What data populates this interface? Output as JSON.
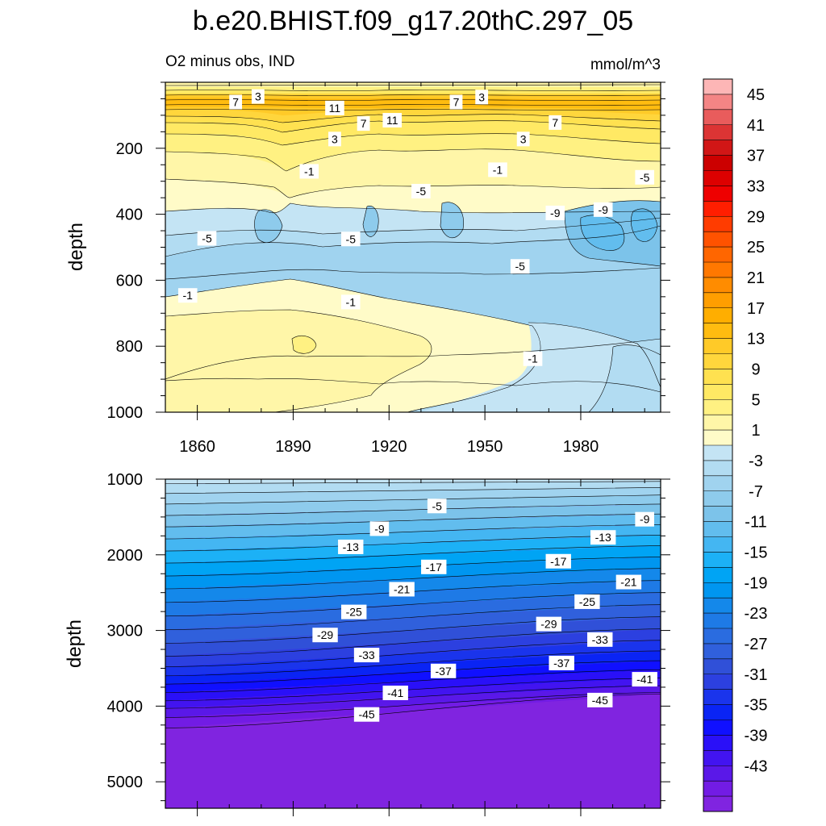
{
  "title": "b.e20.BHIST.f09_g17.20thC.297_05",
  "subtitle_left": "O2 minus obs, IND",
  "subtitle_right": "mmol/m^3",
  "chart_data": [
    {
      "type": "contour",
      "panel": "upper",
      "xlabel": "",
      "ylabel": "depth",
      "xlim": [
        1850,
        2005
      ],
      "ylim": [
        0,
        1000
      ],
      "y_inverted": true,
      "x_ticks": [
        1860,
        1890,
        1920,
        1950,
        1980
      ],
      "y_ticks": [
        200,
        400,
        600,
        800,
        1000
      ],
      "contour_labels": [
        {
          "text": "7",
          "x": 1872,
          "y": 60
        },
        {
          "text": "3",
          "x": 1879,
          "y": 43
        },
        {
          "text": "11",
          "x": 1903,
          "y": 78
        },
        {
          "text": "7",
          "x": 1912,
          "y": 125
        },
        {
          "text": "11",
          "x": 1921,
          "y": 115
        },
        {
          "text": "3",
          "x": 1903,
          "y": 172
        },
        {
          "text": "7",
          "x": 1941,
          "y": 60
        },
        {
          "text": "3",
          "x": 1949,
          "y": 45
        },
        {
          "text": "7",
          "x": 1972,
          "y": 122
        },
        {
          "text": "3",
          "x": 1962,
          "y": 172
        },
        {
          "text": "-1",
          "x": 1895,
          "y": 270
        },
        {
          "text": "-1",
          "x": 1954,
          "y": 265
        },
        {
          "text": "-5",
          "x": 2000,
          "y": 288
        },
        {
          "text": "-5",
          "x": 1930,
          "y": 330
        },
        {
          "text": "-9",
          "x": 1972,
          "y": 396
        },
        {
          "text": "-9",
          "x": 1987,
          "y": 386
        },
        {
          "text": "-5",
          "x": 1863,
          "y": 473
        },
        {
          "text": "-5",
          "x": 1908,
          "y": 475
        },
        {
          "text": "-5",
          "x": 1961,
          "y": 558
        },
        {
          "text": "-1",
          "x": 1857,
          "y": 646
        },
        {
          "text": "-1",
          "x": 1908,
          "y": 666
        },
        {
          "text": "-1",
          "x": 1965,
          "y": 838
        }
      ]
    },
    {
      "type": "contour",
      "panel": "lower",
      "xlabel": "",
      "ylabel": "depth",
      "xlim": [
        1850,
        2005
      ],
      "ylim": [
        1000,
        5350
      ],
      "y_inverted": true,
      "y_ticks": [
        1000,
        2000,
        3000,
        4000,
        5000
      ],
      "contour_labels": [
        {
          "text": "-5",
          "x": 1935,
          "y": 1355
        },
        {
          "text": "-9",
          "x": 1917,
          "y": 1655
        },
        {
          "text": "-9",
          "x": 2000,
          "y": 1530
        },
        {
          "text": "-13",
          "x": 1908,
          "y": 1895
        },
        {
          "text": "-13",
          "x": 1987,
          "y": 1770
        },
        {
          "text": "-17",
          "x": 1934,
          "y": 2160
        },
        {
          "text": "-17",
          "x": 1973,
          "y": 2085
        },
        {
          "text": "-21",
          "x": 1924,
          "y": 2455
        },
        {
          "text": "-21",
          "x": 1995,
          "y": 2360
        },
        {
          "text": "-25",
          "x": 1909,
          "y": 2755
        },
        {
          "text": "-25",
          "x": 1982,
          "y": 2620
        },
        {
          "text": "-29",
          "x": 1900,
          "y": 3060
        },
        {
          "text": "-29",
          "x": 1970,
          "y": 2915
        },
        {
          "text": "-33",
          "x": 1913,
          "y": 3325
        },
        {
          "text": "-33",
          "x": 1986,
          "y": 3120
        },
        {
          "text": "-37",
          "x": 1937,
          "y": 3535
        },
        {
          "text": "-37",
          "x": 1974,
          "y": 3430
        },
        {
          "text": "-41",
          "x": 1922,
          "y": 3825
        },
        {
          "text": "-41",
          "x": 2000,
          "y": 3645
        },
        {
          "text": "-45",
          "x": 1913,
          "y": 4110
        },
        {
          "text": "-45",
          "x": 1986,
          "y": 3920
        }
      ]
    }
  ],
  "colorbar": {
    "labels": [
      "45",
      "41",
      "37",
      "33",
      "29",
      "25",
      "21",
      "17",
      "13",
      "9",
      "5",
      "1",
      "-3",
      "-7",
      "-11",
      "-15",
      "-19",
      "-23",
      "-27",
      "-31",
      "-35",
      "-39",
      "-43"
    ],
    "levels": [
      47,
      45,
      43,
      41,
      39,
      37,
      35,
      33,
      31,
      29,
      27,
      25,
      23,
      21,
      19,
      17,
      15,
      13,
      11,
      9,
      7,
      5,
      3,
      1,
      -1,
      -3,
      -5,
      -7,
      -9,
      -11,
      -13,
      -15,
      -17,
      -19,
      -21,
      -23,
      -25,
      -27,
      -29,
      -31,
      -33,
      -35,
      -37,
      -39,
      -41,
      -43,
      -45,
      -47
    ],
    "colors": [
      "#fdb6b6",
      "#f48585",
      "#e95c5c",
      "#dc3434",
      "#d11616",
      "#cc0000",
      "#dd0000",
      "#ee0000",
      "#ff1e00",
      "#ff3c00",
      "#ff5200",
      "#ff6600",
      "#ff7800",
      "#ff8c00",
      "#ff9e00",
      "#ffae00",
      "#ffbc10",
      "#ffca28",
      "#ffd63c",
      "#ffe150",
      "#ffe964",
      "#fff182",
      "#fff6a8",
      "#fffbc8",
      "#c4e4f4",
      "#b2dcf2",
      "#a0d3ef",
      "#8ecbec",
      "#7cc3ea",
      "#62bdee",
      "#44b6f2",
      "#1cb1f6",
      "#00a4f4",
      "#0096f0",
      "#1488ea",
      "#1e7ae6",
      "#2a6ce0",
      "#3060dc",
      "#3050d8",
      "#2c40e0",
      "#1a34ec",
      "#0a24f4",
      "#1010ff",
      "#2a10f8",
      "#4214f0",
      "#5a18e8",
      "#721ce4",
      "#8024e0"
    ]
  }
}
